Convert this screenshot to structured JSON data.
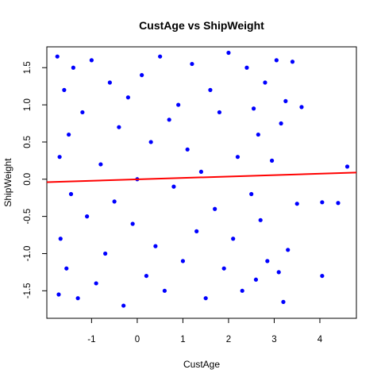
{
  "chart_data": {
    "type": "scatter",
    "title": "CustAge vs ShipWeight",
    "xlabel": "CustAge",
    "ylabel": "ShipWeight",
    "xlim": [
      -1.98,
      4.8
    ],
    "ylim": [
      -1.87,
      1.78
    ],
    "xticks": [
      -1,
      0,
      1,
      2,
      3,
      4
    ],
    "xtick_labels": [
      "-1",
      "0",
      "1",
      "2",
      "3",
      "4"
    ],
    "yticks": [
      -1.5,
      -1.0,
      -0.5,
      0.0,
      0.5,
      1.0,
      1.5
    ],
    "ytick_labels": [
      "-1.5",
      "-1.0",
      "-0.5",
      "0.0",
      "0.5",
      "1.0",
      "1.5"
    ],
    "grid": false,
    "point_color": "#0000FF",
    "line_color": "#FF0000",
    "series": [
      {
        "kind": "points",
        "x": [
          -1.75,
          -1.72,
          -1.7,
          -1.68,
          -1.6,
          -1.55,
          -1.5,
          -1.45,
          -1.4,
          -1.3,
          -1.2,
          -1.1,
          -1.0,
          -0.9,
          -0.8,
          -0.7,
          -0.6,
          -0.5,
          -0.4,
          -0.3,
          -0.2,
          -0.1,
          0.0,
          0.1,
          0.2,
          0.3,
          0.4,
          0.5,
          0.6,
          0.7,
          0.8,
          0.9,
          1.0,
          1.1,
          1.2,
          1.3,
          1.4,
          1.5,
          1.6,
          1.7,
          1.8,
          1.9,
          2.0,
          2.1,
          2.2,
          2.3,
          2.4,
          2.5,
          2.55,
          2.6,
          2.65,
          2.7,
          2.8,
          2.85,
          2.95,
          3.05,
          3.1,
          3.15,
          3.2,
          3.25,
          3.3,
          3.4,
          3.5,
          3.6,
          4.05,
          4.05,
          4.4,
          4.6
        ],
        "y": [
          1.65,
          -1.55,
          0.3,
          -0.8,
          1.2,
          -1.2,
          0.6,
          -0.2,
          1.5,
          -1.6,
          0.9,
          -0.5,
          1.6,
          -1.4,
          0.2,
          -1.0,
          1.3,
          -0.3,
          0.7,
          -1.7,
          1.1,
          -0.6,
          0.0,
          1.4,
          -1.3,
          0.5,
          -0.9,
          1.65,
          -1.5,
          0.8,
          -0.1,
          1.0,
          -1.1,
          0.4,
          1.55,
          -0.7,
          0.1,
          -1.6,
          1.2,
          -0.4,
          0.9,
          -1.2,
          1.7,
          -0.8,
          0.3,
          -1.5,
          1.5,
          -0.2,
          0.95,
          -1.35,
          0.6,
          -0.55,
          1.3,
          -1.1,
          0.25,
          1.6,
          -1.25,
          0.75,
          -1.65,
          1.05,
          -0.95,
          1.58,
          -0.33,
          0.97,
          -1.3,
          -0.31,
          -0.32,
          0.17
        ]
      },
      {
        "kind": "line",
        "name": "",
        "x": [
          -1.98,
          4.8
        ],
        "y": [
          -0.04,
          0.09
        ]
      }
    ]
  }
}
